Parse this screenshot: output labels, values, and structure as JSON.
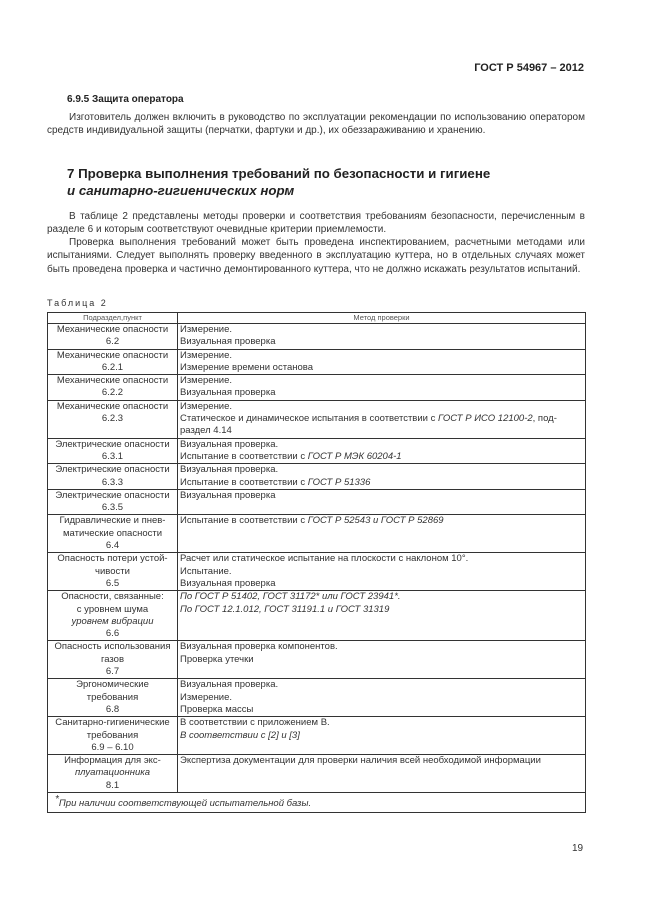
{
  "header": {
    "doc_code": "ГОСТ Р  54967 – 2012"
  },
  "subsection": {
    "title": "6.9.5 Защита оператора",
    "paragraph": "Изготовитель должен включить в руководство по эксплуатации рекомендации по использованию оператором средств индивидуальной защиты (перчатки, фартуки и др.), их обеззараживанию и хранению."
  },
  "section": {
    "title_line1": "7 Проверка выполнения требований по безопасности и гигиене",
    "title_line2": "и санитарно-гигиенических норм",
    "paragraphs": [
      "В таблице 2 представлены методы проверки и соответствия требованиям безопасности, перечисленным в разделе 6 и которым соответствуют очевидные критерии приемлемости.",
      "Проверка выполнения требований может быть проведена инспектированием, расчетными методами или испытаниями. Следует выполнять проверку введенного в эксплуатацию куттера, но в отдельных случаях может быть проведена проверка и частично демонтированного куттера, что не должно искажать результатов испытаний."
    ]
  },
  "table": {
    "caption": "Таблица 2",
    "headers": [
      "Подраздел,пункт",
      "Метод проверки"
    ],
    "rows": [
      {
        "section": [
          {
            "t": "Механические опасности"
          },
          {
            "t": "6.2"
          }
        ],
        "method": [
          [
            {
              "t": "Измерение."
            }
          ],
          [
            {
              "t": "Визуальная проверка"
            }
          ]
        ]
      },
      {
        "section": [
          {
            "t": "Механические опасности"
          },
          {
            "t": "6.2.1"
          }
        ],
        "method": [
          [
            {
              "t": "Измерение."
            }
          ],
          [
            {
              "t": "Измерение времени останова"
            }
          ]
        ]
      },
      {
        "section": [
          {
            "t": "Механические опасности"
          },
          {
            "t": "6.2.2"
          }
        ],
        "method": [
          [
            {
              "t": "Измерение."
            }
          ],
          [
            {
              "t": "Визуальная проверка"
            }
          ]
        ]
      },
      {
        "section": [
          {
            "t": "Механические опасности"
          },
          {
            "t": "6.2.3"
          }
        ],
        "method": [
          [
            {
              "t": "Измерение."
            }
          ],
          [
            {
              "t": "Статическое и динамическое испытания в соответствии с "
            },
            {
              "t": "ГОСТ Р ИСО 12100-2",
              "i": true
            },
            {
              "t": ", под-"
            }
          ],
          [
            {
              "t": "раздел 4.14"
            }
          ]
        ]
      },
      {
        "section": [
          {
            "t": "Электрические опасности"
          },
          {
            "t": "6.3.1"
          }
        ],
        "method": [
          [
            {
              "t": "Визуальная проверка."
            }
          ],
          [
            {
              "t": "Испытание в соответствии с "
            },
            {
              "t": "ГОСТ Р МЭК 60204-1",
              "i": true
            }
          ]
        ]
      },
      {
        "section": [
          {
            "t": "Электрические опасности"
          },
          {
            "t": "6.3.3"
          }
        ],
        "method": [
          [
            {
              "t": "Визуальная проверка."
            }
          ],
          [
            {
              "t": "Испытание в соответствии с "
            },
            {
              "t": "ГОСТ Р 51336",
              "i": true
            }
          ]
        ]
      },
      {
        "section": [
          {
            "t": "Электрические опасности"
          },
          {
            "t": "6.3.5"
          }
        ],
        "method": [
          [
            {
              "t": "Визуальная проверка"
            }
          ]
        ]
      },
      {
        "section": [
          {
            "t": "Гидравлические и пнев-"
          },
          {
            "t": "матические опасности"
          },
          {
            "t": "6.4"
          }
        ],
        "method": [
          [
            {
              "t": "Испытание в соответствии с "
            },
            {
              "t": "ГОСТ Р 52543 и ГОСТ Р 52869",
              "i": true
            }
          ]
        ]
      },
      {
        "section": [
          {
            "t": "Опасность потери устой-"
          },
          {
            "t": "чивости"
          },
          {
            "t": "6.5"
          }
        ],
        "method": [
          [
            {
              "t": "Расчет или статическое испытание на плоскости с наклоном 10°."
            }
          ],
          [
            {
              "t": "Испытание."
            }
          ],
          [
            {
              "t": "Визуальная проверка"
            }
          ]
        ]
      },
      {
        "section": [
          {
            "t": "Опасности, связанные:"
          },
          {
            "t": "с уровнем шума"
          },
          {
            "t": "уровнем вибрации",
            "i": true
          },
          {
            "t": "6.6"
          }
        ],
        "method": [
          [
            {
              "t": " "
            }
          ],
          [
            {
              "t": "По ГОСТ Р 51402, ГОСТ 31172* или ГОСТ 23941*.",
              "i": true
            }
          ],
          [
            {
              "t": "По ГОСТ 12.1.012, ГОСТ 31191.1 и ГОСТ 31319",
              "i": true
            }
          ]
        ]
      },
      {
        "section": [
          {
            "t": "Опасность использования"
          },
          {
            "t": "газов"
          },
          {
            "t": "6.7"
          }
        ],
        "method": [
          [
            {
              "t": "Визуальная проверка компонентов."
            }
          ],
          [
            {
              "t": "Проверка утечки"
            }
          ]
        ]
      },
      {
        "section": [
          {
            "t": "Эргономические"
          },
          {
            "t": "требования"
          },
          {
            "t": "6.8"
          }
        ],
        "method": [
          [
            {
              "t": "Визуальная проверка."
            }
          ],
          [
            {
              "t": "Измерение."
            }
          ],
          [
            {
              "t": "Проверка массы"
            }
          ]
        ]
      },
      {
        "section": [
          {
            "t": "Санитарно-гигиенические"
          },
          {
            "t": "требования"
          },
          {
            "t": "6.9 – 6.10"
          }
        ],
        "method": [
          [
            {
              "t": "В соответствии с приложением В."
            }
          ],
          [
            {
              "t": "В соответствии с [2] и [3]",
              "i": true
            }
          ]
        ]
      },
      {
        "section": [
          {
            "t": "Информация для экс-"
          },
          {
            "t": "плуатационника",
            "i": true
          },
          {
            "t": "8.1"
          }
        ],
        "method": [
          [
            {
              "t": "Экспертиза документации для проверки наличия всей необходимой информации"
            }
          ]
        ]
      }
    ],
    "footnote_mark": "*",
    "footnote": "При наличии соответствующей испытательной базы."
  },
  "footer": {
    "page_number": "19"
  }
}
